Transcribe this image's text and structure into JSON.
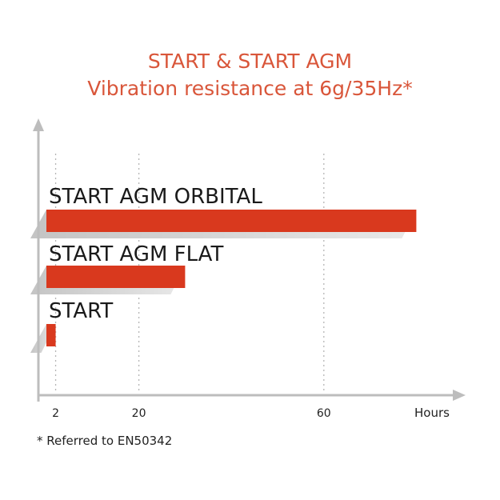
{
  "chart_data": {
    "type": "bar",
    "orientation": "horizontal",
    "title": "START & START AGM",
    "subtitle": "Vibration resistance at 6g/35Hz*",
    "categories": [
      "START AGM ORBITAL",
      "START AGM FLAT",
      "START"
    ],
    "values": [
      80,
      30,
      2
    ],
    "x_ticks": [
      2,
      20,
      60
    ],
    "xlabel": "Hours",
    "ylabel": "",
    "xlim": [
      0,
      90
    ],
    "grid": "vertical dotted at ticks",
    "footnote": "* Referred to EN50342",
    "colors": {
      "bar": "#d9391e",
      "bar_shadow": "#c9c9c9",
      "axis": "#bdbdbd",
      "title": "#d9563a"
    }
  }
}
